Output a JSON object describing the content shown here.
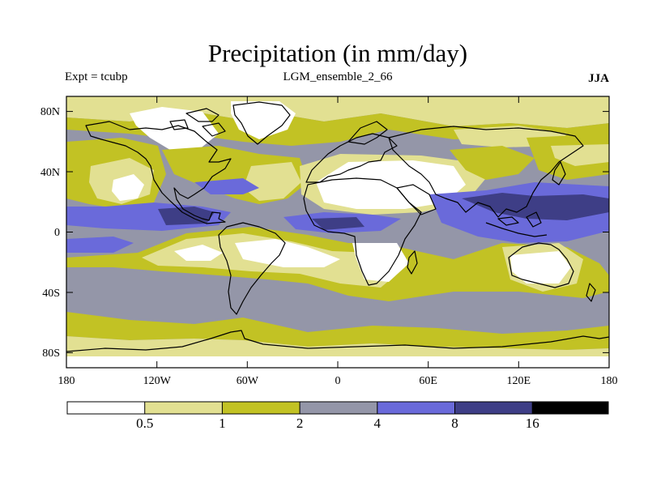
{
  "title": "Precipitation (in mm/day)",
  "experiment": "Expt = tcubp",
  "ensemble": "LGM_ensemble_2_66",
  "season": "JJA",
  "lat_labels": [
    "80N",
    "40N",
    "0",
    "40S",
    "80S"
  ],
  "lon_labels": [
    "180",
    "120W",
    "60W",
    "0",
    "60E",
    "120E",
    "180"
  ],
  "colorbar": {
    "colors": [
      "#ffffff",
      "#e2e092",
      "#c2c224",
      "#9496a8",
      "#6a6ada",
      "#3e3e86",
      "#000000"
    ],
    "tick_labels": [
      "0.5",
      "1",
      "2",
      "4",
      "8",
      "16"
    ]
  },
  "chart_data": {
    "type": "heatmap",
    "title": "Precipitation (in mm/day)",
    "variable": "Precipitation",
    "units": "mm/day",
    "experiment": "tcubp",
    "dataset": "LGM_ensemble_2_66",
    "season": "JJA",
    "x_range_lon": [
      -180,
      180
    ],
    "y_range_lat": [
      -90,
      90
    ],
    "levels": [
      0.5,
      1,
      2,
      4,
      8,
      16
    ]
  }
}
